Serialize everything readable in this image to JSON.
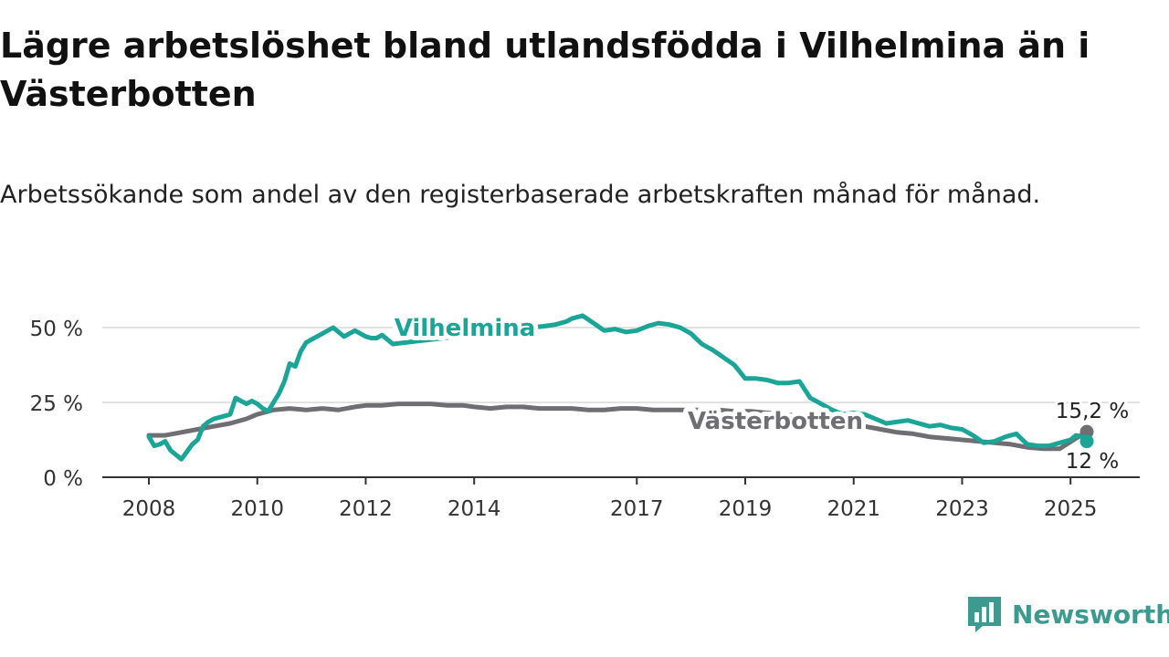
{
  "page": {
    "title": "Lägre arbetslöshet bland utlandsfödda i Vilhelmina än i Västerbotten",
    "subtitle": "Arbetssökande som andel av den registerbaserade arbetskraften månad för månad."
  },
  "brand": {
    "name": "Newsworthy",
    "icon": "bar-chart-speech-icon",
    "color": "#3d9a8f"
  },
  "chart_data": {
    "type": "line",
    "y_ticks": [
      {
        "value": 0,
        "label": "0 %"
      },
      {
        "value": 25,
        "label": "25 %"
      },
      {
        "value": 50,
        "label": "50 %"
      }
    ],
    "x_ticks": [
      {
        "value": 2008,
        "label": "2008"
      },
      {
        "value": 2010,
        "label": "2010"
      },
      {
        "value": 2012,
        "label": "2012"
      },
      {
        "value": 2014,
        "label": "2014"
      },
      {
        "value": 2017,
        "label": "2017"
      },
      {
        "value": 2019,
        "label": "2019"
      },
      {
        "value": 2021,
        "label": "2021"
      },
      {
        "value": 2023,
        "label": "2023"
      },
      {
        "value": 2025,
        "label": "2025"
      }
    ],
    "xlim": [
      2008,
      2025.3
    ],
    "ylim": [
      0,
      55
    ],
    "grid": true,
    "series": [
      {
        "name": "Vilhelmina",
        "color": "#1aa597",
        "end_label": "12 %",
        "x": [
          2008,
          2008.1,
          2008.2,
          2008.3,
          2008.4,
          2008.5,
          2008.6,
          2008.7,
          2008.8,
          2008.9,
          2009,
          2009.1,
          2009.2,
          2009.3,
          2009.4,
          2009.5,
          2009.6,
          2009.7,
          2009.8,
          2009.9,
          2010,
          2010.1,
          2010.2,
          2010.3,
          2010.4,
          2010.5,
          2010.6,
          2010.7,
          2010.8,
          2010.9,
          2011,
          2011.2,
          2011.4,
          2011.6,
          2011.8,
          2012,
          2012.1,
          2012.2,
          2012.3,
          2012.4,
          2012.5,
          2015.3,
          2015.5,
          2015.7,
          2015.8,
          2016,
          2016.2,
          2016.4,
          2016.6,
          2016.8,
          2017,
          2017.2,
          2017.4,
          2017.6,
          2017.8,
          2018,
          2018.2,
          2018.4,
          2018.6,
          2018.8,
          2019,
          2019.2,
          2019.4,
          2019.6,
          2019.8,
          2020,
          2020.2,
          2020.4,
          2020.6,
          2020.8,
          2021,
          2021.2,
          2021.4,
          2021.6,
          2021.8,
          2022,
          2022.2,
          2022.4,
          2022.6,
          2022.8,
          2023,
          2023.2,
          2023.4,
          2023.6,
          2023.8,
          2024,
          2024.2,
          2024.4,
          2024.6,
          2024.8,
          2025,
          2025.1,
          2025.2,
          2025.3
        ],
        "y": [
          13.5,
          10.5,
          11,
          12,
          9,
          7.5,
          6,
          8.5,
          11,
          12.5,
          17,
          18.5,
          19.5,
          20,
          20.5,
          21,
          26.5,
          25.5,
          24.5,
          25.5,
          24.5,
          23,
          22,
          25,
          28,
          32,
          38,
          37,
          42,
          45,
          46,
          48,
          50,
          47,
          49,
          47,
          46.5,
          46.5,
          47.5,
          46,
          44.5,
          50.5,
          51,
          52,
          53,
          54,
          51.5,
          49,
          49.5,
          48.5,
          49,
          50.5,
          51.5,
          51,
          50,
          48,
          44.5,
          42.5,
          40,
          37.5,
          33,
          33,
          32.5,
          31.5,
          31.5,
          32,
          26.5,
          24.5,
          22.5,
          21,
          21.5,
          21,
          19.5,
          18,
          18.5,
          19,
          18,
          17,
          17.5,
          16.5,
          16,
          14,
          11.5,
          12,
          13.5,
          14.5,
          11,
          10.5,
          10.5,
          11.5,
          12.5,
          14,
          13.5,
          12
        ]
      },
      {
        "name": "Västerbotten",
        "color": "#6e6e73",
        "end_label": "15,2 %",
        "x": [
          2008,
          2008.3,
          2008.6,
          2008.9,
          2009.2,
          2009.5,
          2009.8,
          2010,
          2010.3,
          2010.6,
          2010.9,
          2011.2,
          2011.5,
          2011.8,
          2012,
          2012.3,
          2012.6,
          2012.9,
          2013.2,
          2013.5,
          2013.8,
          2014,
          2014.3,
          2014.6,
          2014.9,
          2015.2,
          2015.5,
          2015.8,
          2016.1,
          2016.4,
          2016.7,
          2017,
          2017.3,
          2017.6,
          2017.9,
          2018.2,
          2018.5,
          2018.8,
          2019.1,
          2019.4,
          2019.7,
          2020,
          2020.3,
          2020.6,
          2020.9,
          2021.2,
          2021.5,
          2021.8,
          2022.1,
          2022.4,
          2022.7,
          2023,
          2023.3,
          2023.6,
          2023.9,
          2024.2,
          2024.5,
          2024.8,
          2025.1,
          2025.3
        ],
        "y": [
          14,
          14,
          15,
          16,
          17,
          18,
          19.5,
          21,
          22.5,
          23,
          22.5,
          23,
          22.5,
          23.5,
          24,
          24,
          24.5,
          24.5,
          24.5,
          24,
          24,
          23.5,
          23,
          23.5,
          23.5,
          23,
          23,
          23,
          22.5,
          22.5,
          23,
          23,
          22.5,
          22.5,
          22.5,
          22.5,
          22.5,
          22,
          22,
          21.5,
          21,
          20.5,
          20,
          19,
          18,
          17,
          16,
          15,
          14.5,
          13.5,
          13,
          12.5,
          12,
          11.5,
          11,
          10,
          9.5,
          9.5,
          13,
          15.2
        ]
      }
    ]
  }
}
